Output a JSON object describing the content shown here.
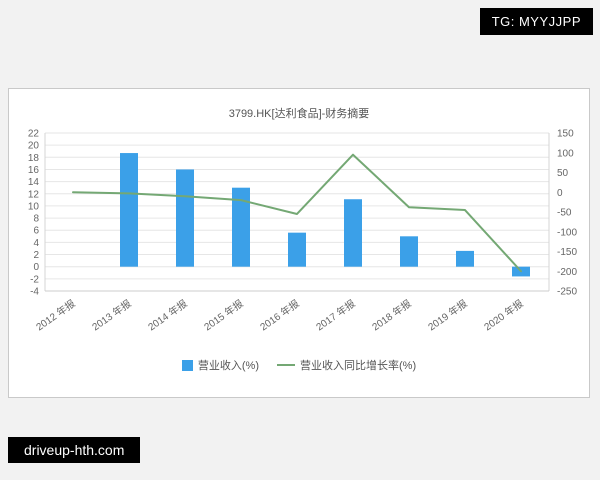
{
  "watermarks": {
    "tg": "TG: MYYJJPP",
    "site": "driveup-hth.com"
  },
  "chart_data": {
    "type": "bar",
    "subtype": "combo-bar-line",
    "title": "3799.HK[达利食品]-财务摘要",
    "categories": [
      "2012 年报",
      "2013 年报",
      "2014 年报",
      "2015 年报",
      "2016 年报",
      "2017 年报",
      "2018 年报",
      "2019 年报",
      "2020 年报"
    ],
    "series": [
      {
        "name": "营业收入(%)",
        "type": "bar",
        "axis": "left",
        "color": "#3ba0e8",
        "values": [
          null,
          18.7,
          16.0,
          13.0,
          5.6,
          11.1,
          5.0,
          2.6,
          -1.6
        ]
      },
      {
        "name": "营业收入同比增长率(%)",
        "type": "line",
        "axis": "right",
        "color": "#74a874",
        "values": [
          0,
          -3,
          -10,
          -20,
          -55,
          95,
          -38,
          -45,
          -200
        ]
      }
    ],
    "left_axis": {
      "min": -4,
      "max": 22,
      "step": 2
    },
    "right_axis": {
      "min": -250,
      "max": 150,
      "step": 50
    },
    "grid": true,
    "legend_position": "bottom"
  }
}
